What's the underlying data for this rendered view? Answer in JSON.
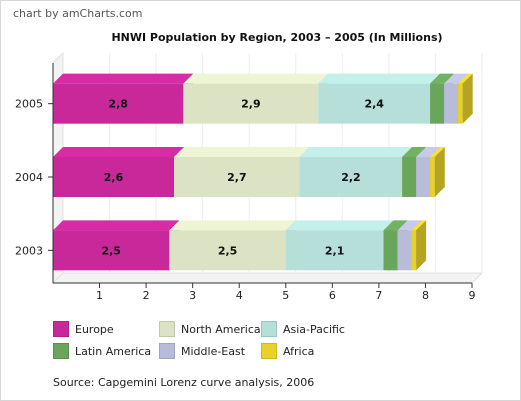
{
  "credit": "chart by amCharts.com",
  "source": "Source: Capgemini Lorenz curve analysis, 2006",
  "chart_data": {
    "type": "bar",
    "orientation": "horizontal",
    "stacked": true,
    "three_d": true,
    "title": "HNWI Population by Region, 2003 – 2005 (In Millions)",
    "categories": [
      "2005",
      "2004",
      "2003"
    ],
    "series": [
      {
        "name": "Europe",
        "color": "#c8289a",
        "values": [
          2.8,
          2.6,
          2.5
        ],
        "labels": [
          "2,8",
          "2,6",
          "2,5"
        ]
      },
      {
        "name": "North America",
        "color": "#dce3c4",
        "values": [
          2.9,
          2.7,
          2.5
        ],
        "labels": [
          "2,9",
          "2,7",
          "2,5"
        ]
      },
      {
        "name": "Asia-Pacific",
        "color": "#b5dfd8",
        "values": [
          2.4,
          2.2,
          2.1
        ],
        "labels": [
          "2,4",
          "2,2",
          "2,1"
        ]
      },
      {
        "name": "Latin America",
        "color": "#6aa55c",
        "values": [
          0.3,
          0.3,
          0.3
        ],
        "labels": [
          "",
          "",
          ""
        ]
      },
      {
        "name": "Middle-East",
        "color": "#b8bcd8",
        "values": [
          0.3,
          0.3,
          0.3
        ],
        "labels": [
          "",
          "",
          ""
        ]
      },
      {
        "name": "Africa",
        "color": "#e8d22a",
        "values": [
          0.1,
          0.1,
          0.1
        ],
        "labels": [
          "",
          "",
          ""
        ]
      }
    ],
    "xlim": [
      0,
      9
    ],
    "xticks": [
      "1",
      "2",
      "3",
      "4",
      "5",
      "6",
      "7",
      "8",
      "9"
    ],
    "grid": true,
    "legend": "bottom"
  }
}
